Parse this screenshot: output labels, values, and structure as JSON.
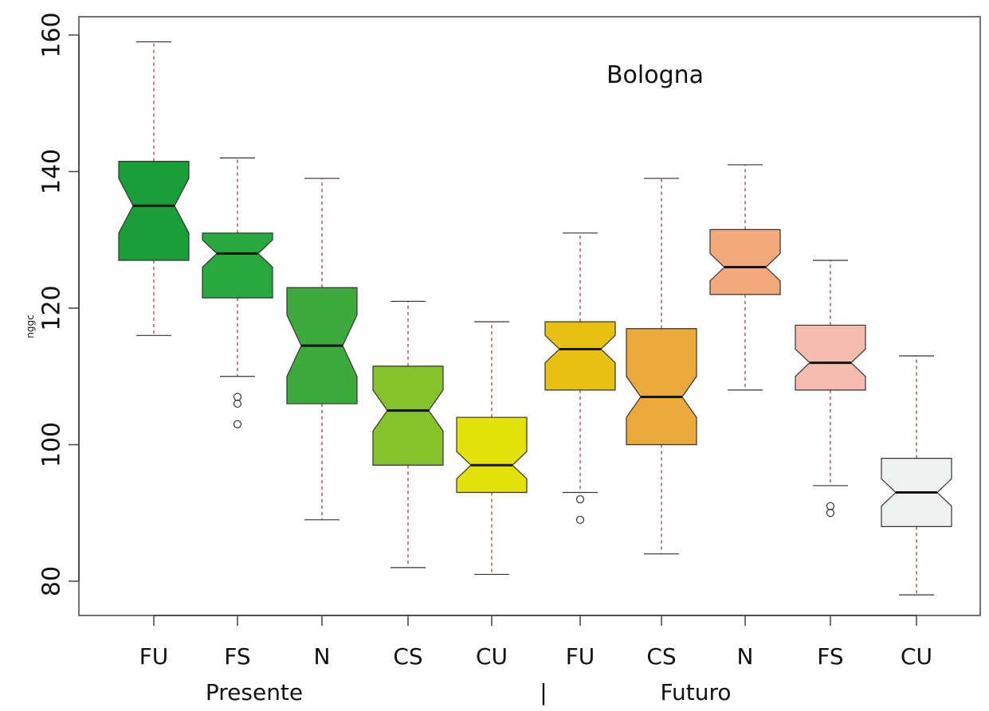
{
  "chart_data": {
    "type": "boxplot",
    "title": "Bologna",
    "ylabel": "nggc",
    "ylim": [
      75,
      161
    ],
    "yticks": [
      80,
      100,
      120,
      140,
      160
    ],
    "grid": false,
    "groups": [
      {
        "label": "Presente"
      },
      {
        "label": "Futuro"
      }
    ],
    "group_separator": "|",
    "boxes": [
      {
        "group": "Presente",
        "label": "FU",
        "color": "#1a9e3a",
        "whisker_low": 116,
        "q1": 127,
        "median": 135,
        "q3": 141.5,
        "whisker_high": 159,
        "notch_low": 131,
        "notch_high": 139,
        "outliers": []
      },
      {
        "group": "Presente",
        "label": "FS",
        "color": "#29a83f",
        "whisker_low": 110,
        "q1": 121.5,
        "median": 128,
        "q3": 131,
        "whisker_high": 142,
        "notch_low": 126,
        "notch_high": 130,
        "outliers": [
          107,
          106,
          103
        ]
      },
      {
        "group": "Presente",
        "label": "N",
        "color": "#3eaa3e",
        "whisker_low": 89,
        "q1": 106,
        "median": 114.5,
        "q3": 123,
        "whisker_high": 139,
        "notch_low": 110,
        "notch_high": 119,
        "outliers": []
      },
      {
        "group": "Presente",
        "label": "CS",
        "color": "#86c22c",
        "whisker_low": 82,
        "q1": 97,
        "median": 105,
        "q3": 111.5,
        "whisker_high": 121,
        "notch_low": 102,
        "notch_high": 108,
        "outliers": []
      },
      {
        "group": "Presente",
        "label": "CU",
        "color": "#e2e10a",
        "whisker_low": 81,
        "q1": 93,
        "median": 97,
        "q3": 104,
        "whisker_high": 118,
        "notch_low": 95,
        "notch_high": 99,
        "outliers": []
      },
      {
        "group": "Futuro",
        "label": "FU",
        "color": "#e8c012",
        "whisker_low": 93,
        "q1": 108,
        "median": 114,
        "q3": 118,
        "whisker_high": 131,
        "notch_low": 112,
        "notch_high": 116,
        "outliers": [
          92,
          89
        ]
      },
      {
        "group": "Futuro",
        "label": "CS",
        "color": "#e9a93c",
        "whisker_low": 84,
        "q1": 100,
        "median": 107,
        "q3": 117,
        "whisker_high": 139,
        "notch_low": 104,
        "notch_high": 110,
        "outliers": []
      },
      {
        "group": "Futuro",
        "label": "N",
        "color": "#f2aa7c",
        "whisker_low": 108,
        "q1": 122,
        "median": 126,
        "q3": 131.5,
        "whisker_high": 141,
        "notch_low": 124,
        "notch_high": 128,
        "outliers": []
      },
      {
        "group": "Futuro",
        "label": "FS",
        "color": "#f3bcae",
        "whisker_low": 94,
        "q1": 108,
        "median": 112,
        "q3": 117.5,
        "whisker_high": 127,
        "notch_low": 110,
        "notch_high": 114,
        "outliers": [
          91,
          90
        ]
      },
      {
        "group": "Futuro",
        "label": "CU",
        "color": "#eff0f0",
        "whisker_low": 78,
        "q1": 88,
        "median": 93,
        "q3": 98,
        "whisker_high": 113,
        "notch_low": 91,
        "notch_high": 95,
        "outliers": []
      }
    ]
  }
}
